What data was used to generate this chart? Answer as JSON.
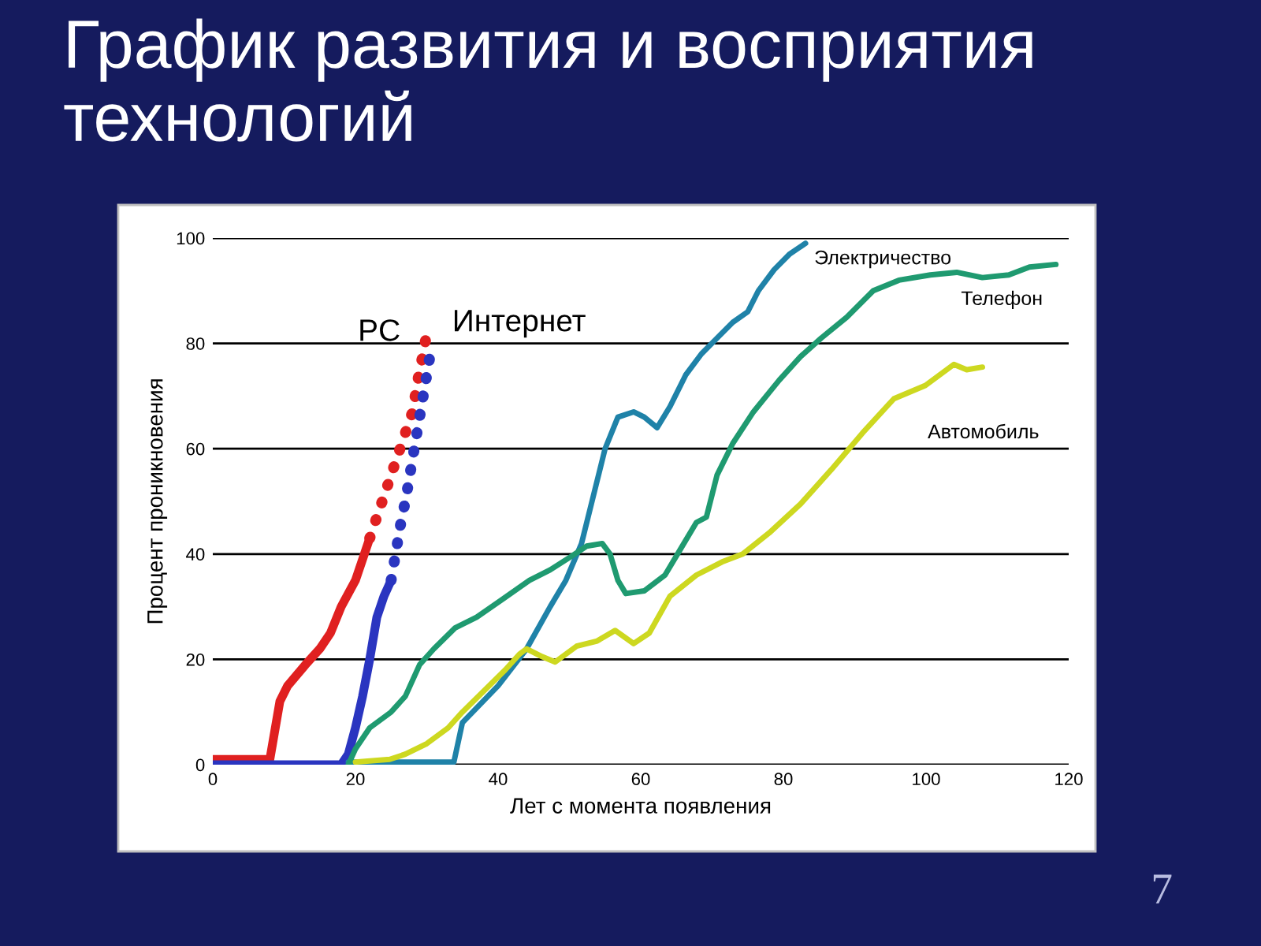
{
  "chart_data": {
    "type": "line",
    "title": "График развития и восприятия технологий",
    "xlabel": "Лет с момента появления",
    "ylabel": "Процент проникновения",
    "xlim": [
      0,
      120
    ],
    "xticks": [
      0,
      20,
      40,
      60,
      80,
      100,
      120
    ],
    "ylim": [
      0,
      100
    ],
    "yticks": [
      0,
      20,
      40,
      60,
      80,
      100
    ],
    "grid": "y",
    "legend": false,
    "series": [
      {
        "color": "#e02020",
        "line_style": "solid",
        "x": [
          0,
          8,
          9.4,
          10.5,
          13,
          15,
          16.5,
          18,
          20,
          22
        ],
        "values": [
          1,
          1,
          12,
          15,
          19,
          22,
          25,
          30,
          35,
          43
        ]
      },
      {
        "name": "PC",
        "color": "#e02020",
        "line_style": "dotted",
        "x": [
          22,
          23,
          24,
          25,
          26,
          27,
          28,
          28.5,
          29,
          29.5,
          30
        ],
        "values": [
          43,
          47,
          51,
          55,
          59,
          63,
          67,
          71,
          75,
          78,
          82
        ]
      },
      {
        "color": "#2a35c0",
        "line_style": "solid",
        "x": [
          0,
          18,
          19,
          20,
          21,
          22,
          23,
          24,
          25
        ],
        "values": [
          0,
          0,
          2,
          7,
          13,
          20,
          28,
          32,
          35
        ]
      },
      {
        "name": "Интернет",
        "color": "#2a35c0",
        "line_style": "dotted",
        "x": [
          25,
          25.5,
          26,
          26.5,
          27,
          27.5,
          28,
          28.5,
          29,
          29.5,
          30,
          30.5
        ],
        "values": [
          35,
          39,
          43,
          47,
          50,
          54,
          58,
          62,
          66,
          70,
          74,
          78
        ]
      },
      {
        "name": "Электричество",
        "color": "#1f82a8",
        "line_style": "solid",
        "x": [
          19,
          33.8,
          35,
          40,
          44,
          47.3,
          49.5,
          51.7,
          53.9,
          55,
          56.8,
          59,
          60.5,
          62.3,
          64.1,
          66.3,
          68.5,
          70.7,
          72.9,
          75,
          76.5,
          78.7,
          80.9,
          83.1
        ],
        "values": [
          0.5,
          0.5,
          8,
          15,
          22,
          30,
          35,
          42,
          54,
          60,
          66,
          67,
          66,
          64,
          68,
          74,
          78,
          81,
          84,
          86,
          90,
          94,
          97,
          99
        ]
      },
      {
        "name": "Телефон",
        "color": "#1f9a70",
        "line_style": "solid",
        "x": [
          19,
          20,
          22,
          25,
          27,
          29,
          31,
          34,
          37,
          40.7,
          44.4,
          47.3,
          50.2,
          52.4,
          54.6,
          55.7,
          56.8,
          57.9,
          60.5,
          63.4,
          65.6,
          67.8,
          69.2,
          70.7,
          72.9,
          75.8,
          79.4,
          82.4,
          85.3,
          88.9,
          92.6,
          96.2,
          100.6,
          104.3,
          107.9,
          111.6,
          114.5,
          118.2
        ],
        "values": [
          0,
          3,
          7,
          10,
          13,
          19,
          22,
          26,
          28,
          31.5,
          35,
          37,
          39.5,
          41.5,
          42,
          40,
          35,
          32.5,
          33,
          36,
          41,
          46,
          47,
          55,
          61,
          67,
          73,
          77.5,
          81,
          85,
          90,
          92,
          93,
          93.5,
          92.5,
          93,
          94.5,
          95
        ]
      },
      {
        "name": "Автомобиль",
        "color": "#cdd820",
        "line_style": "solid",
        "x": [
          20,
          24.8,
          27,
          30,
          33,
          35,
          38,
          41,
          43,
          44,
          46.2,
          48,
          51,
          53.9,
          56.4,
          59,
          61.2,
          64.1,
          67.8,
          71.4,
          74.3,
          78,
          82.4,
          86.7,
          91.1,
          95.5,
          99.9,
          103.9,
          105.7,
          107.9
        ],
        "values": [
          0.5,
          1,
          2,
          4,
          7,
          10,
          14,
          18,
          21,
          22,
          20.5,
          19.5,
          22.5,
          23.5,
          25.5,
          23,
          25,
          32,
          36,
          38.5,
          40,
          44,
          49.5,
          56,
          63,
          69.5,
          72,
          76,
          75,
          75.5
        ]
      }
    ],
    "annotations": [
      "7"
    ]
  }
}
